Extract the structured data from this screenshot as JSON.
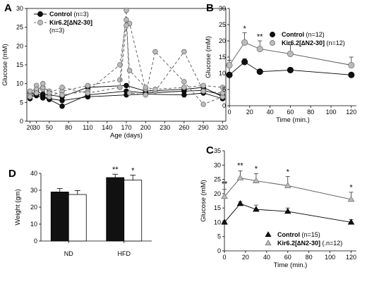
{
  "panels": [
    {
      "id": "A",
      "type": "line",
      "xlabel": "Age (days)",
      "ylabel": "Glucose (mM)",
      "xlim": [
        15,
        325
      ],
      "ylim": [
        0,
        30
      ],
      "xticks": [
        20,
        30,
        50,
        80,
        110,
        140,
        170,
        200,
        230,
        260,
        290,
        320
      ],
      "yticks": [
        0,
        5,
        10,
        15,
        20,
        25,
        30
      ],
      "legend": [
        {
          "name": "Control",
          "n": " (n=3)",
          "marker": "black-circle",
          "color": "#111111"
        },
        {
          "name": "Kir6.2[∆N2-30]",
          "n": "(n=3)",
          "marker": "gray-circle",
          "color": "#bbbbbb"
        }
      ],
      "series": [
        {
          "group": "control",
          "x": [
            20,
            30,
            40,
            50,
            70,
            110,
            170,
            200,
            260,
            290,
            320
          ],
          "y": [
            6.5,
            6.8,
            6.2,
            6.0,
            5.5,
            6.5,
            7.0,
            7.2,
            7.0,
            7.5,
            6.0
          ]
        },
        {
          "group": "control",
          "x": [
            20,
            30,
            40,
            50,
            70,
            110,
            170,
            200,
            260,
            290,
            320
          ],
          "y": [
            7.5,
            7.2,
            6.8,
            5.8,
            4.0,
            7.0,
            8.0,
            7.5,
            8.0,
            8.2,
            7.0
          ]
        },
        {
          "group": "control",
          "x": [
            20,
            30,
            40,
            50,
            70,
            110,
            170,
            200,
            260,
            290,
            320
          ],
          "y": [
            6.0,
            8.0,
            7.2,
            7.0,
            6.5,
            9.0,
            9.5,
            8.0,
            8.5,
            9.0,
            6.5
          ]
        },
        {
          "group": "kir",
          "x": [
            20,
            30,
            40,
            50,
            70,
            110,
            160,
            170,
            175,
            200,
            215,
            260,
            290,
            320
          ],
          "y": [
            7.0,
            9.5,
            8.5,
            6.5,
            8.0,
            9.5,
            11.0,
            29.5,
            7.5,
            7.0,
            18.5,
            10.5,
            4.5,
            6.5
          ]
        },
        {
          "group": "kir",
          "x": [
            20,
            30,
            40,
            50,
            70,
            110,
            160,
            170,
            175,
            200,
            215,
            260,
            290,
            320
          ],
          "y": [
            6.5,
            8.5,
            9.0,
            8.0,
            7.0,
            8.0,
            15.0,
            27.0,
            26.0,
            8.5,
            8.0,
            18.5,
            8.0,
            7.5
          ]
        },
        {
          "group": "kir",
          "x": [
            20,
            30,
            40,
            50,
            70,
            110,
            160,
            170,
            175,
            200,
            215,
            260,
            290,
            320
          ],
          "y": [
            8.0,
            7.5,
            10.0,
            7.5,
            9.0,
            7.5,
            9.0,
            25.5,
            13.5,
            9.0,
            8.5,
            9.0,
            9.5,
            9.0
          ]
        }
      ]
    },
    {
      "id": "B",
      "type": "line",
      "xlabel": "Time (min.)",
      "ylabel": "Glucose (mM)",
      "xlim": [
        0,
        125
      ],
      "ylim": [
        0,
        30
      ],
      "xticks": [
        0,
        20,
        40,
        60,
        80,
        100,
        120
      ],
      "yticks": [
        0,
        5,
        10,
        15,
        20,
        25,
        30
      ],
      "legend": [
        {
          "name": "Control",
          "n": " (n=12)",
          "marker": "black-circle",
          "color": "#111111"
        },
        {
          "name": "Kir6.2[∆N2-30]",
          "n": " (n=12)",
          "marker": "gray-circle",
          "color": "#bbbbbb"
        }
      ],
      "series": [
        {
          "group": "control",
          "x": [
            0,
            15,
            30,
            60,
            120
          ],
          "y": [
            9.5,
            13.5,
            10.5,
            11.0,
            9.5
          ],
          "err": [
            0.5,
            1.0,
            0.5,
            0.5,
            0.5
          ]
        },
        {
          "group": "kir",
          "x": [
            0,
            15,
            30,
            60,
            120
          ],
          "y": [
            12.5,
            19.5,
            17.5,
            16.0,
            12.5
          ],
          "err": [
            1.5,
            3.0,
            2.5,
            2.8,
            2.5
          ]
        }
      ],
      "annotations": [
        {
          "x": 15,
          "y": 23.0,
          "text": "*"
        },
        {
          "x": 30,
          "y": 20.5,
          "text": "**"
        }
      ]
    },
    {
      "id": "C",
      "type": "line",
      "xlabel": "Time (min.)",
      "ylabel": "Glucose (mM)",
      "xlim": [
        0,
        125
      ],
      "ylim": [
        0,
        35
      ],
      "xticks": [
        0,
        20,
        40,
        60,
        80,
        100,
        120
      ],
      "yticks": [
        0,
        5,
        10,
        15,
        20,
        25,
        30,
        35
      ],
      "legend": [
        {
          "name": "Control",
          "n": " (n=15)",
          "marker": "black-triangle",
          "color": "#111111"
        },
        {
          "name": "Kir6.2[∆N2-30]",
          "n": " (.n=12)",
          "marker": "gray-triangle",
          "color": "#bbbbbb"
        }
      ],
      "series": [
        {
          "group": "control",
          "x": [
            0,
            15,
            30,
            60,
            120
          ],
          "y": [
            10.0,
            16.5,
            14.5,
            13.8,
            10.0
          ],
          "err": [
            0.5,
            0.7,
            1.5,
            1.2,
            1.0
          ]
        },
        {
          "group": "kir",
          "x": [
            0,
            15,
            30,
            60,
            120
          ],
          "y": [
            19.0,
            25.5,
            24.5,
            22.8,
            18.0
          ],
          "err": [
            2.5,
            2.5,
            2.5,
            3.2,
            2.5
          ]
        }
      ],
      "annotations": [
        {
          "x": 0,
          "y": 22.5,
          "text": "**"
        },
        {
          "x": 15,
          "y": 29.0,
          "text": "**"
        },
        {
          "x": 30,
          "y": 27.8,
          "text": "*"
        },
        {
          "x": 60,
          "y": 26.8,
          "text": "*"
        },
        {
          "x": 120,
          "y": 21.3,
          "text": "*"
        }
      ]
    },
    {
      "id": "D",
      "type": "bar",
      "ylabel": "Weight (gm)",
      "ylim": [
        0,
        40
      ],
      "yticks": [
        0,
        10,
        20,
        30,
        40
      ],
      "categories": [
        "ND",
        "HFD"
      ],
      "series": [
        {
          "group": "control",
          "color": "#111111",
          "values": [
            29.0,
            37.5
          ],
          "err": [
            2.0,
            2.0
          ]
        },
        {
          "group": "kir",
          "color": "#ffffff",
          "values": [
            27.5,
            36.0
          ],
          "err": [
            2.3,
            3.0
          ]
        }
      ],
      "annotations": [
        {
          "category": 1,
          "series": 0,
          "text": "**"
        },
        {
          "category": 1,
          "series": 1,
          "text": "*"
        }
      ]
    }
  ]
}
